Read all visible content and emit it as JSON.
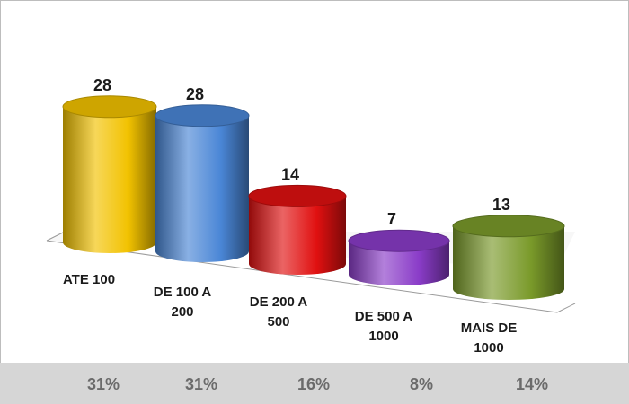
{
  "chart_data": {
    "type": "bar",
    "categories": [
      "ATE 100",
      "DE 100 A 200",
      "DE 200 A 500",
      "DE 500 A 1000",
      "MAIS DE 1000"
    ],
    "values": [
      28,
      28,
      14,
      7,
      13
    ],
    "percentages": [
      "31%",
      "31%",
      "16%",
      "8%",
      "14%"
    ],
    "data_labels": [
      "28",
      "28",
      "14",
      "7",
      "13"
    ],
    "category_lines": [
      [
        "ATE 100"
      ],
      [
        "DE 100 A",
        "200"
      ],
      [
        "DE 200 A",
        "500"
      ],
      [
        "DE 500 A",
        "1000"
      ],
      [
        "MAIS DE",
        "1000"
      ]
    ],
    "colors": [
      "#f2c200",
      "#4a86d6",
      "#e01010",
      "#8a3cc8",
      "#7a9a2a"
    ],
    "ylim": [
      0,
      30
    ],
    "grid": false,
    "legend": "none"
  }
}
